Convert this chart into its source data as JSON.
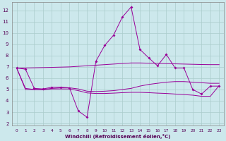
{
  "xlabel": "Windchill (Refroidissement éolien,°C)",
  "background_color": "#cce8ec",
  "grid_color": "#aacccc",
  "line_color": "#990099",
  "xlim": [
    -0.5,
    23.5
  ],
  "ylim": [
    1.8,
    12.7
  ],
  "xticks": [
    0,
    1,
    2,
    3,
    4,
    5,
    6,
    7,
    8,
    9,
    10,
    11,
    12,
    13,
    14,
    15,
    16,
    17,
    18,
    19,
    20,
    21,
    22,
    23
  ],
  "yticks": [
    2,
    3,
    4,
    5,
    6,
    7,
    8,
    9,
    10,
    11,
    12
  ],
  "line1_x": [
    0,
    1,
    2,
    3,
    4,
    5,
    6,
    7,
    8,
    9,
    10,
    11,
    12,
    13,
    14,
    15,
    16,
    17,
    18,
    19,
    20,
    21,
    22,
    23
  ],
  "line1_y": [
    6.9,
    6.8,
    5.1,
    5.05,
    5.2,
    5.2,
    5.15,
    3.1,
    2.55,
    7.5,
    8.9,
    9.8,
    11.4,
    12.3,
    8.55,
    7.8,
    7.1,
    8.1,
    6.9,
    6.9,
    5.0,
    4.6,
    5.3,
    5.3
  ],
  "line2_x": [
    0,
    1,
    2,
    3,
    4,
    5,
    6,
    7,
    8,
    9,
    10,
    11,
    12,
    13,
    14,
    15,
    16,
    17,
    18,
    19,
    20,
    21,
    22,
    23
  ],
  "line2_y": [
    6.9,
    6.9,
    6.92,
    6.94,
    6.96,
    6.98,
    7.0,
    7.05,
    7.1,
    7.15,
    7.2,
    7.25,
    7.3,
    7.35,
    7.35,
    7.33,
    7.31,
    7.29,
    7.27,
    7.25,
    7.23,
    7.21,
    7.2,
    7.2
  ],
  "line3_x": [
    0,
    1,
    2,
    3,
    4,
    5,
    6,
    7,
    8,
    9,
    10,
    11,
    12,
    13,
    14,
    15,
    16,
    17,
    18,
    19,
    20,
    21,
    22,
    23
  ],
  "line3_y": [
    6.9,
    5.1,
    5.0,
    5.0,
    5.1,
    5.15,
    5.15,
    5.05,
    4.85,
    4.82,
    4.85,
    4.9,
    5.0,
    5.1,
    5.3,
    5.45,
    5.55,
    5.65,
    5.7,
    5.7,
    5.65,
    5.6,
    5.55,
    5.55
  ],
  "line4_x": [
    0,
    1,
    2,
    3,
    4,
    5,
    6,
    7,
    8,
    9,
    10,
    11,
    12,
    13,
    14,
    15,
    16,
    17,
    18,
    19,
    20,
    21,
    22,
    23
  ],
  "line4_y": [
    6.9,
    5.0,
    5.0,
    4.98,
    5.05,
    5.05,
    5.05,
    4.9,
    4.7,
    4.65,
    4.65,
    4.68,
    4.72,
    4.75,
    4.75,
    4.72,
    4.68,
    4.65,
    4.6,
    4.55,
    4.5,
    4.4,
    4.4,
    5.35
  ]
}
